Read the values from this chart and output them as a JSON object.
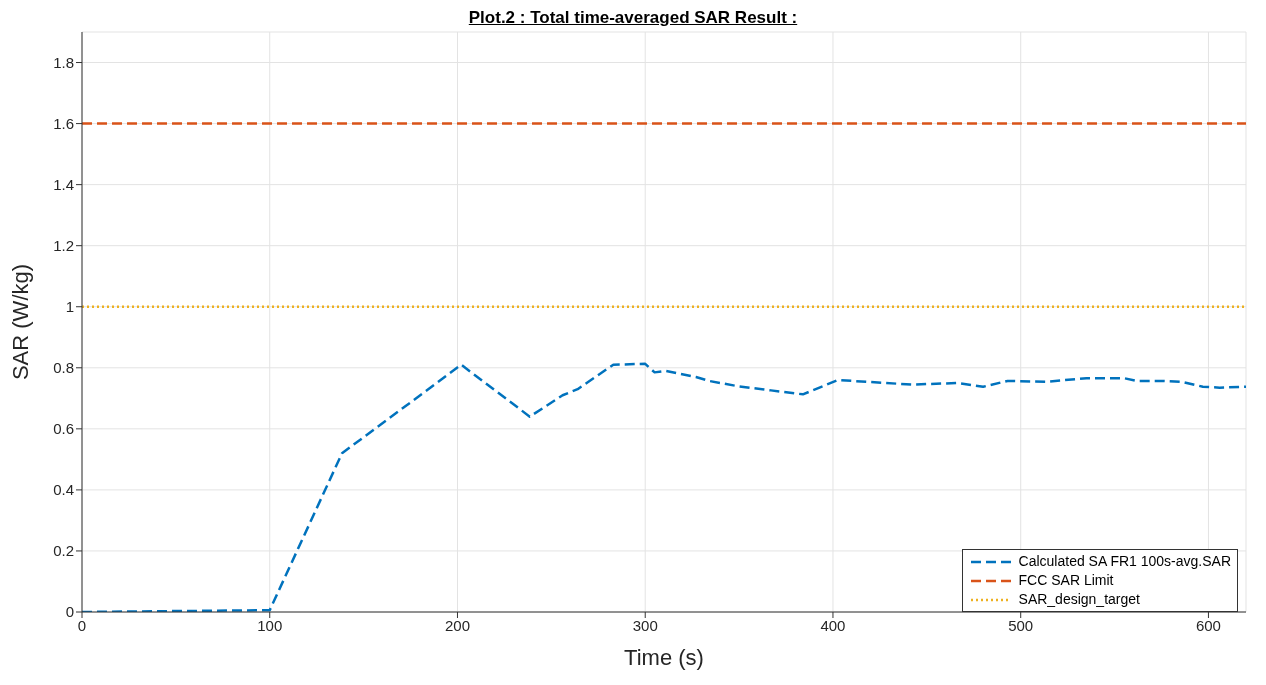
{
  "chart_data": {
    "type": "line",
    "title": "Plot.2 : Total time-averaged SAR Result :",
    "xlabel": "Time (s)",
    "ylabel": "SAR (W/kg)",
    "xlim": [
      0,
      620
    ],
    "xticks": [
      0,
      100,
      200,
      300,
      400,
      500,
      600
    ],
    "ylim": [
      0,
      1.9
    ],
    "yticks": [
      0,
      0.2,
      0.4,
      0.6,
      0.8,
      1,
      1.2,
      1.4,
      1.6,
      1.8
    ],
    "grid": true,
    "legend": "bottom right",
    "marker": "none",
    "series": [
      {
        "name": "Calculated SA FR1 100s-avg.SAR",
        "color": "#0072bd",
        "line_style": "dashed",
        "x": [
          0,
          100,
          138.5,
          202,
          238.5,
          256,
          264,
          283,
          300,
          305,
          311,
          327,
          334,
          349,
          367,
          384,
          402.6,
          418,
          442,
          466.7,
          480,
          493,
          513.5,
          535,
          555,
          562,
          575.5,
          586,
          597,
          606,
          620
        ],
        "values": [
          0,
          0.006,
          0.52,
          0.81,
          0.64,
          0.71,
          0.73,
          0.81,
          0.813,
          0.785,
          0.79,
          0.77,
          0.757,
          0.74,
          0.726,
          0.713,
          0.76,
          0.754,
          0.745,
          0.75,
          0.738,
          0.757,
          0.754,
          0.766,
          0.766,
          0.757,
          0.757,
          0.754,
          0.738,
          0.735,
          0.738
        ]
      },
      {
        "name": "FCC SAR Limit",
        "color": "#d95319",
        "line_style": "dashed",
        "x": [
          0,
          620
        ],
        "values": [
          1.6,
          1.6
        ]
      },
      {
        "name": "SAR_design_target",
        "color": "#edb120",
        "line_style": "dotted",
        "x": [
          0,
          620
        ],
        "values": [
          1,
          1
        ]
      }
    ]
  }
}
